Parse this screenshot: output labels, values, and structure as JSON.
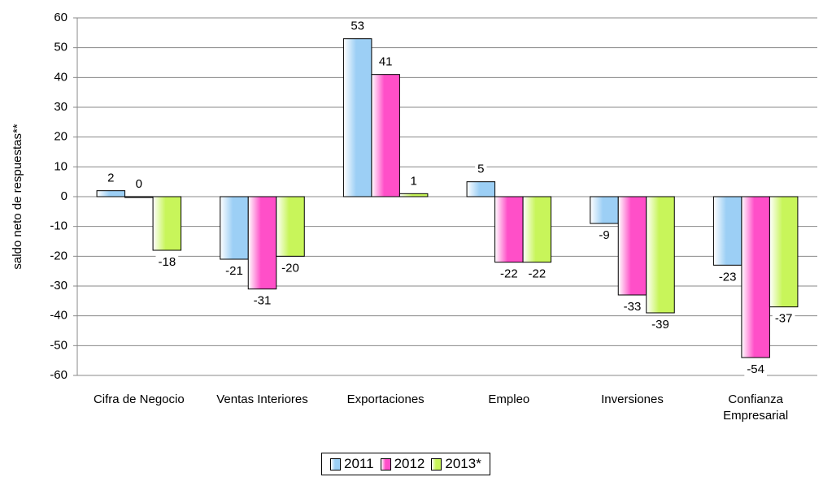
{
  "chart_data": {
    "type": "bar",
    "y_label": "saldo neto de respuestas**",
    "categories": [
      "Cifra de Negocio",
      "Ventas Interiores",
      "Exportaciones",
      "Empleo",
      "Inversiones",
      "Confianza Empresarial"
    ],
    "series": [
      {
        "name": "2011",
        "color": "#9ccff5",
        "values": [
          2,
          -21,
          53,
          5,
          -9,
          -23
        ]
      },
      {
        "name": "2012",
        "color": "#ff4fc8",
        "values": [
          0,
          -31,
          41,
          -22,
          -33,
          -54
        ]
      },
      {
        "name": "2013*",
        "color": "#c8f55a",
        "values": [
          -18,
          -20,
          1,
          -22,
          -39,
          -37
        ]
      }
    ],
    "ylim": [
      -60,
      60
    ],
    "yticks": [
      -60,
      -50,
      -40,
      -30,
      -20,
      -10,
      0,
      10,
      20,
      30,
      40,
      50,
      60
    ],
    "grid": true,
    "legend": "bottom"
  }
}
